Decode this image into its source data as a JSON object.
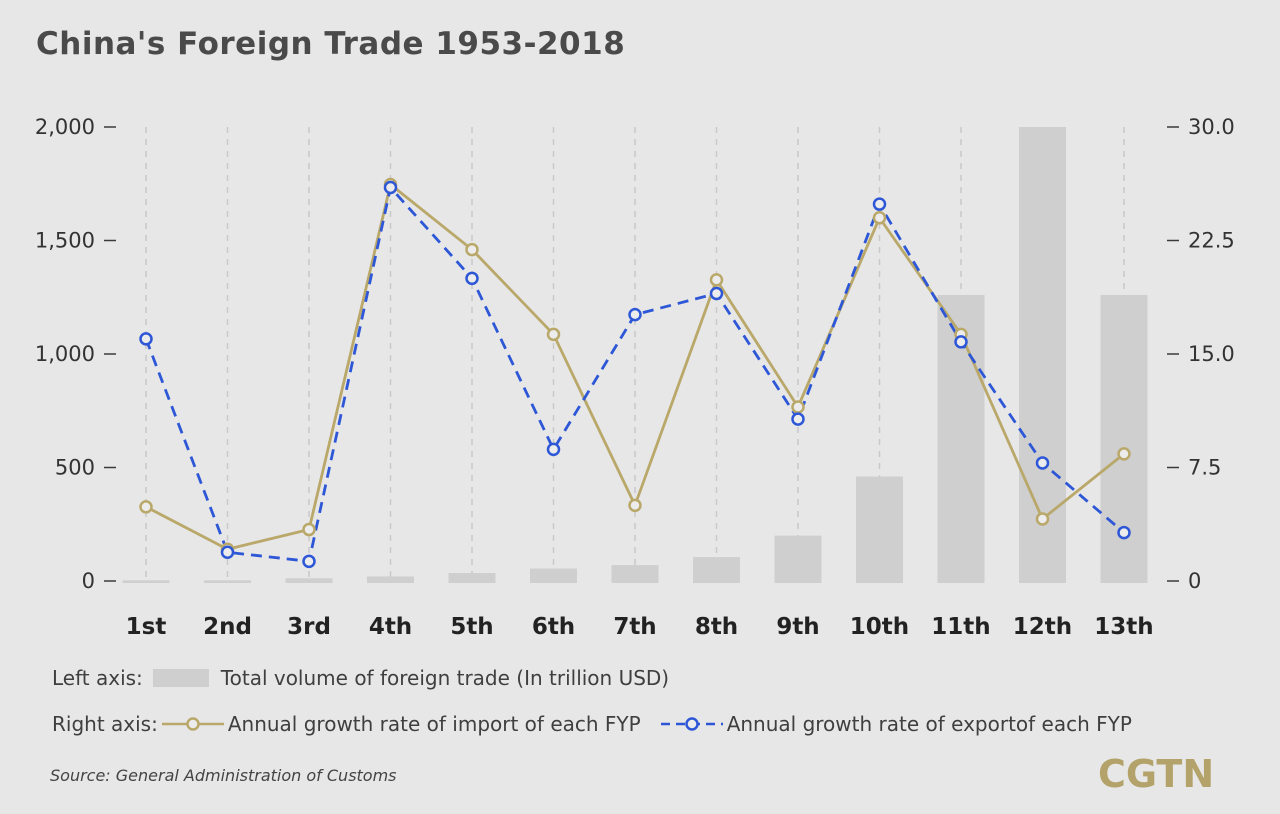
{
  "title": "China's Foreign Trade 1953-2018",
  "legend": {
    "left_prefix": "Left axis:",
    "bar_label": "Total volume of foreign trade (In trillion USD)",
    "right_prefix": "Right axis:",
    "import_label": "Annual growth rate of import of each FYP",
    "export_label": "Annual growth rate of exportof each FYP"
  },
  "source": "Source: General Administration of Customs",
  "logo": "CGTN",
  "colors": {
    "bar": "#cfcfcf",
    "import": "#b9a86a",
    "export": "#2d57d6",
    "grid": "#c9c9c9"
  },
  "chart_data": {
    "type": "bar",
    "categories": [
      "1st",
      "2nd",
      "3rd",
      "4th",
      "5th",
      "6th",
      "7th",
      "8th",
      "9th",
      "10th",
      "11th",
      "12th",
      "13th"
    ],
    "left_axis": {
      "min": 0,
      "max": 2000,
      "ticks": [
        0,
        500,
        1000,
        1500,
        2000
      ],
      "tick_labels": [
        "0",
        "500",
        "1,000",
        "1,500",
        "2,000"
      ]
    },
    "right_axis": {
      "min": 0,
      "max": 30,
      "ticks": [
        0,
        7.5,
        15,
        22.5,
        30
      ],
      "tick_labels": [
        "0",
        "7.5",
        "15.0",
        "22.5",
        "30.0"
      ]
    },
    "bars": {
      "axis": "left",
      "values": [
        3,
        3,
        12,
        20,
        35,
        55,
        70,
        105,
        200,
        460,
        1260,
        2000,
        1260
      ]
    },
    "series": [
      {
        "name": "Annual growth rate of import of each FYP",
        "axis": "right",
        "style": "solid",
        "values": [
          4.9,
          2.1,
          3.4,
          26.2,
          21.9,
          16.3,
          5.0,
          19.9,
          11.5,
          24.0,
          16.3,
          4.1,
          8.4
        ]
      },
      {
        "name": "Annual growth rate of exportof each FYP",
        "axis": "right",
        "style": "dashed",
        "values": [
          16.0,
          1.9,
          1.3,
          26.0,
          20.0,
          8.7,
          17.6,
          19.0,
          10.7,
          24.9,
          15.8,
          7.8,
          3.2
        ]
      }
    ],
    "grid": {
      "vertical_dashed": true
    }
  }
}
